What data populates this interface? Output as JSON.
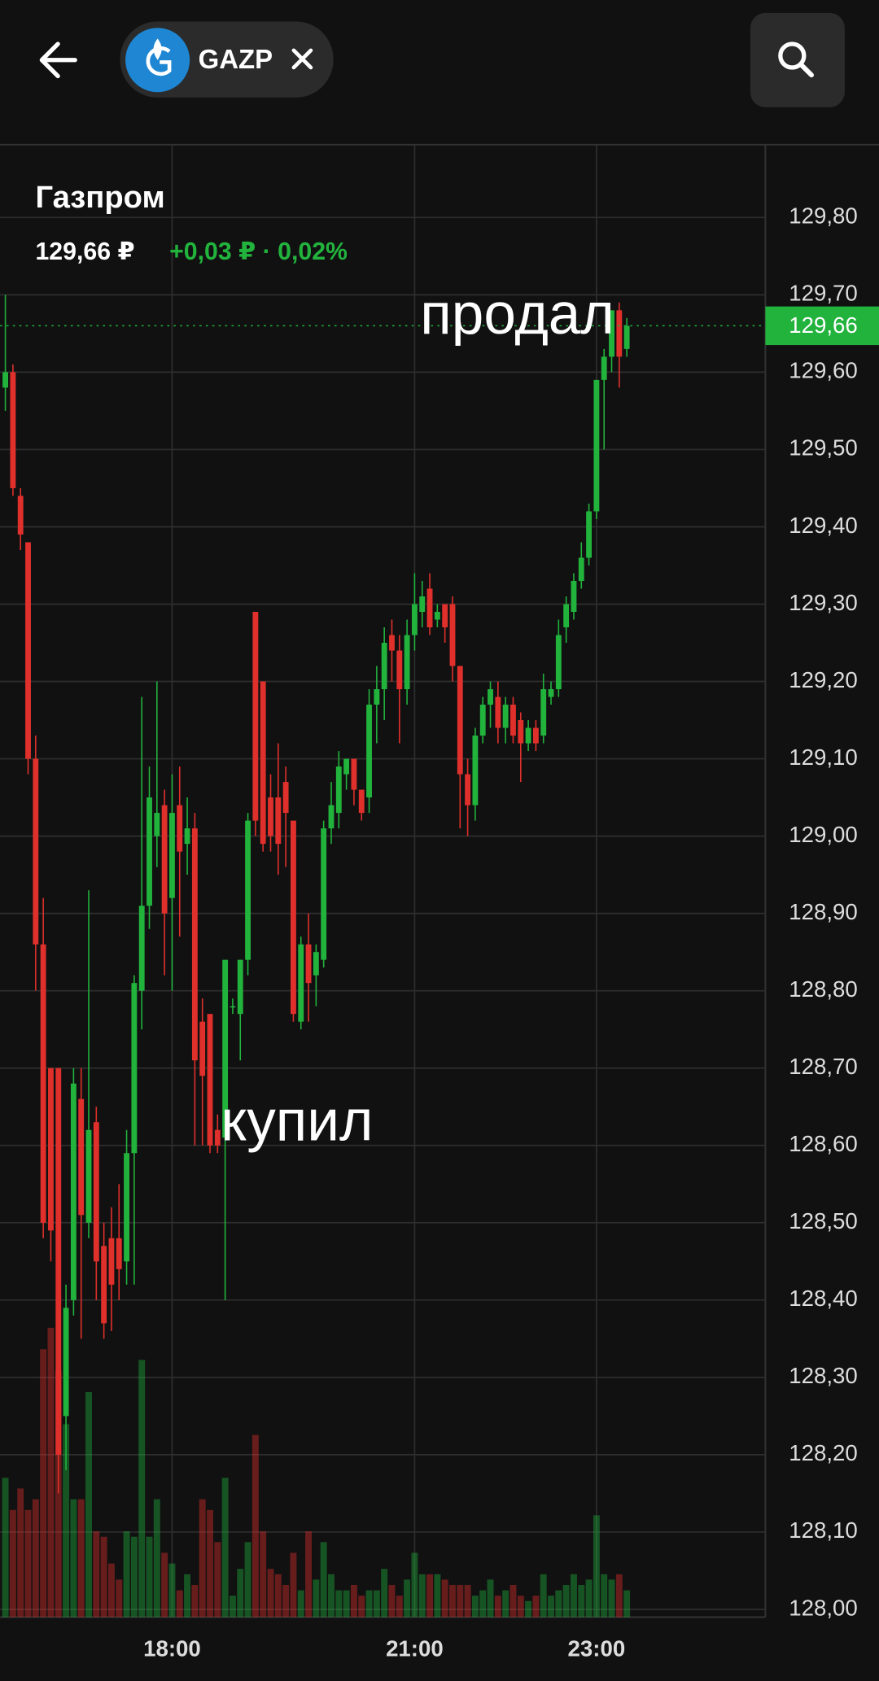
{
  "header": {
    "ticker": "GAZP"
  },
  "chart_data": {
    "type": "candlestick",
    "title": "Газпром",
    "price_text": "129,66 ₽",
    "change_text": "+0,03 ₽ · 0,02%",
    "annotations": [
      "продал",
      "купил"
    ],
    "up_color": "#22b33d",
    "down_color": "#e0302c",
    "grid": true,
    "current_price": {
      "value": 129.66,
      "label": "129,66"
    },
    "categories": [
      null,
      null,
      null,
      null,
      null,
      null,
      null,
      null,
      null,
      null,
      null,
      null,
      null,
      null,
      null,
      null,
      null,
      null,
      null,
      null,
      null,
      null,
      "18:00",
      null,
      null,
      null,
      null,
      null,
      null,
      null,
      null,
      null,
      null,
      null,
      null,
      null,
      null,
      null,
      null,
      null,
      null,
      null,
      null,
      null,
      null,
      null,
      null,
      null,
      null,
      null,
      null,
      null,
      null,
      null,
      "21:00",
      null,
      null,
      null,
      null,
      null,
      null,
      null,
      null,
      null,
      null,
      null,
      null,
      null,
      null,
      null,
      null,
      null,
      null,
      null,
      null,
      null,
      null,
      null,
      "23:00",
      null,
      null,
      null,
      null
    ],
    "open": [
      129.58,
      129.6,
      129.44,
      129.38,
      129.1,
      128.86,
      128.7,
      128.7,
      128.25,
      128.4,
      128.66,
      128.5,
      128.63,
      128.47,
      128.48,
      128.48,
      128.45,
      128.59,
      128.8,
      128.91,
      129.0,
      129.04,
      128.92,
      129.04,
      128.99,
      129.01,
      128.76,
      128.77,
      128.62,
      128.61,
      128.78,
      128.77,
      128.84,
      129.29,
      129.2,
      129.05,
      129.05,
      129.07,
      129.02,
      128.76,
      128.86,
      128.82,
      128.84,
      129.01,
      129.03,
      129.08,
      129.1,
      129.06,
      129.05,
      129.17,
      129.19,
      129.26,
      129.24,
      129.19,
      129.26,
      129.29,
      129.32,
      129.28,
      129.3,
      129.3,
      129.22,
      129.08,
      129.04,
      129.13,
      129.17,
      129.18,
      129.14,
      129.17,
      129.15,
      129.12,
      129.14,
      129.13,
      129.18,
      129.19,
      129.27,
      129.29,
      129.33,
      129.36,
      129.42,
      129.59,
      129.62,
      129.68,
      129.63
    ],
    "high": [
      129.7,
      129.61,
      129.45,
      129.38,
      129.13,
      128.92,
      128.7,
      128.7,
      128.42,
      128.7,
      128.7,
      128.93,
      128.65,
      128.5,
      128.52,
      128.55,
      128.62,
      128.82,
      129.18,
      129.09,
      129.2,
      129.06,
      129.08,
      129.09,
      129.05,
      129.03,
      128.79,
      128.77,
      128.64,
      128.84,
      128.79,
      128.84,
      129.03,
      129.29,
      129.2,
      129.08,
      129.12,
      129.09,
      129.02,
      128.87,
      128.9,
      128.86,
      129.02,
      129.07,
      129.11,
      129.1,
      129.1,
      129.06,
      129.19,
      129.22,
      129.27,
      129.28,
      129.26,
      129.28,
      129.34,
      129.33,
      129.34,
      129.3,
      129.3,
      129.31,
      129.22,
      129.1,
      129.14,
      129.18,
      129.2,
      129.2,
      129.18,
      129.18,
      129.16,
      129.15,
      129.15,
      129.21,
      129.2,
      129.28,
      129.31,
      129.34,
      129.38,
      129.43,
      129.59,
      129.63,
      129.68,
      129.69,
      129.67
    ],
    "low": [
      129.55,
      129.44,
      129.37,
      129.08,
      128.8,
      128.48,
      128.45,
      128.15,
      128.18,
      128.38,
      128.35,
      128.48,
      128.4,
      128.35,
      128.36,
      128.4,
      128.42,
      128.42,
      128.75,
      128.88,
      128.96,
      128.82,
      128.8,
      128.87,
      128.95,
      128.6,
      128.6,
      128.59,
      128.59,
      128.4,
      128.77,
      128.71,
      128.82,
      129.0,
      128.98,
      128.98,
      128.95,
      128.96,
      128.76,
      128.75,
      128.76,
      128.78,
      128.83,
      128.99,
      129.01,
      129.06,
      129.04,
      129.02,
      129.03,
      129.12,
      129.15,
      129.2,
      129.12,
      129.17,
      129.24,
      129.27,
      129.26,
      129.27,
      129.25,
      129.2,
      129.01,
      129.0,
      129.02,
      129.12,
      129.14,
      129.12,
      129.12,
      129.12,
      129.07,
      129.11,
      129.11,
      129.12,
      129.17,
      129.18,
      129.25,
      129.28,
      129.32,
      129.35,
      129.41,
      129.5,
      129.6,
      129.58,
      129.62
    ],
    "close": [
      129.6,
      129.45,
      129.39,
      129.1,
      128.86,
      128.5,
      128.49,
      128.2,
      128.39,
      128.68,
      128.51,
      128.62,
      128.45,
      128.37,
      128.42,
      128.44,
      128.59,
      128.81,
      128.91,
      129.05,
      129.03,
      128.9,
      129.03,
      128.98,
      129.01,
      128.71,
      128.69,
      128.6,
      128.6,
      128.84,
      128.78,
      128.84,
      129.02,
      129.02,
      128.99,
      129.0,
      128.99,
      129.03,
      128.77,
      128.86,
      128.81,
      128.85,
      129.01,
      129.04,
      129.09,
      129.1,
      129.06,
      129.03,
      129.17,
      129.19,
      129.25,
      129.24,
      129.19,
      129.26,
      129.3,
      129.31,
      129.27,
      129.29,
      129.27,
      129.22,
      129.08,
      129.04,
      129.13,
      129.17,
      129.19,
      129.14,
      129.17,
      129.13,
      129.12,
      129.14,
      129.12,
      129.19,
      129.19,
      129.26,
      129.3,
      129.33,
      129.36,
      129.42,
      129.59,
      129.62,
      129.68,
      129.62,
      129.66
    ],
    "volume": [
      130,
      100,
      120,
      100,
      110,
      250,
      270,
      230,
      180,
      110,
      110,
      210,
      80,
      75,
      50,
      35,
      80,
      75,
      240,
      75,
      110,
      60,
      50,
      25,
      40,
      30,
      110,
      100,
      70,
      130,
      20,
      45,
      70,
      170,
      80,
      45,
      40,
      30,
      60,
      25,
      80,
      35,
      70,
      40,
      25,
      25,
      30,
      20,
      25,
      25,
      45,
      30,
      20,
      35,
      60,
      40,
      40,
      40,
      35,
      30,
      30,
      30,
      20,
      25,
      35,
      20,
      25,
      30,
      20,
      15,
      20,
      40,
      20,
      25,
      30,
      40,
      30,
      35,
      95,
      40,
      35,
      40,
      25
    ],
    "ylim": [
      127.99,
      129.89
    ],
    "yticks": [
      {
        "value": 128.0,
        "label": "128,00"
      },
      {
        "value": 128.1,
        "label": "128,10"
      },
      {
        "value": 128.2,
        "label": "128,20"
      },
      {
        "value": 128.3,
        "label": "128,30"
      },
      {
        "value": 128.4,
        "label": "128,40"
      },
      {
        "value": 128.5,
        "label": "128,50"
      },
      {
        "value": 128.6,
        "label": "128,60"
      },
      {
        "value": 128.7,
        "label": "128,70"
      },
      {
        "value": 128.8,
        "label": "128,80"
      },
      {
        "value": 128.9,
        "label": "128,90"
      },
      {
        "value": 129.0,
        "label": "129,00"
      },
      {
        "value": 129.1,
        "label": "129,10"
      },
      {
        "value": 129.2,
        "label": "129,20"
      },
      {
        "value": 129.3,
        "label": "129,30"
      },
      {
        "value": 129.4,
        "label": "129,40"
      },
      {
        "value": 129.5,
        "label": "129,50"
      },
      {
        "value": 129.6,
        "label": "129,60"
      },
      {
        "value": 129.7,
        "label": "129,70"
      },
      {
        "value": 129.8,
        "label": "129,80"
      }
    ]
  }
}
